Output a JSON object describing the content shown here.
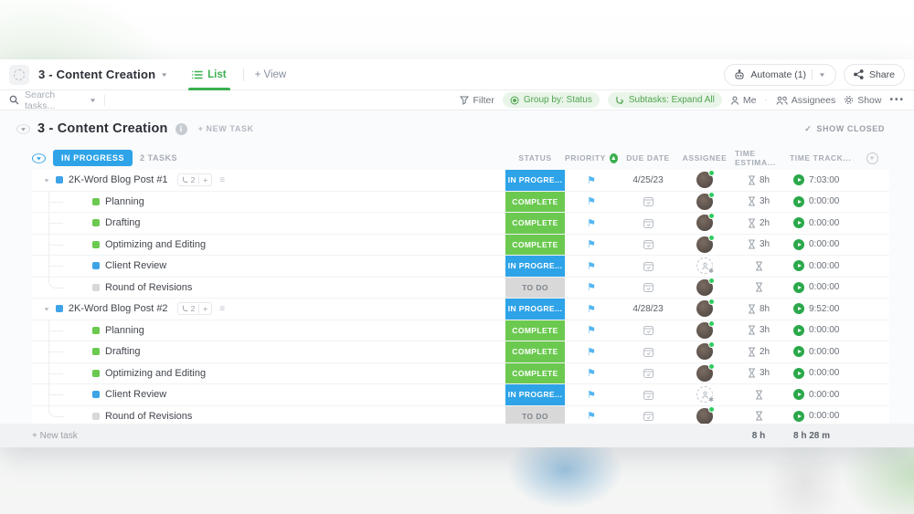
{
  "topbar": {
    "list_title": "3 - Content Creation",
    "tab_list": "List",
    "tab_view": "+ View",
    "automate_label": "Automate (1)",
    "share_label": "Share"
  },
  "toolbar": {
    "search_placeholder": "Search tasks...",
    "filter_label": "Filter",
    "group_by_label": "Group by: Status",
    "subtasks_label": "Subtasks: Expand All",
    "me_label": "Me",
    "assignees_label": "Assignees",
    "show_label": "Show"
  },
  "page": {
    "title": "3 - Content Creation",
    "info_label": "i",
    "new_task_label": "+ NEW TASK",
    "show_closed_label": "SHOW CLOSED",
    "show_closed_check": "✓"
  },
  "columns": {
    "status": "STATUS",
    "priority": "PRIORITY",
    "due": "DUE DATE",
    "assignee": "ASSIGNEE",
    "estimate": "TIME ESTIMA...",
    "tracked": "TIME TRACK..."
  },
  "group": {
    "status_label": "IN PROGRESS",
    "count_label": "2 TASKS"
  },
  "colors": {
    "in_progress": "#2ea3e8",
    "complete": "#6bc950",
    "todo": "#d8d8d8",
    "accent_green": "#3baf4f"
  },
  "tasks": [
    {
      "name": "2K-Word Blog Post #1",
      "subtask_count": "2",
      "status": "IN PROGRE...",
      "status_type": "inprogress",
      "due": "4/25/23",
      "estimate": "8h",
      "tracked": "7:03:00",
      "assignee": "avatar",
      "square": "#3fa3e8",
      "subtasks": [
        {
          "name": "Planning",
          "status": "COMPLETE",
          "status_type": "complete",
          "estimate": "3h",
          "tracked": "0:00:00",
          "assignee": "avatar",
          "square": "#6bc950"
        },
        {
          "name": "Drafting",
          "status": "COMPLETE",
          "status_type": "complete",
          "estimate": "2h",
          "tracked": "0:00:00",
          "assignee": "avatar",
          "square": "#6bc950"
        },
        {
          "name": "Optimizing and Editing",
          "status": "COMPLETE",
          "status_type": "complete",
          "estimate": "3h",
          "tracked": "0:00:00",
          "assignee": "avatar",
          "square": "#6bc950"
        },
        {
          "name": "Client Review",
          "status": "IN PROGRE...",
          "status_type": "inprogress",
          "estimate": "",
          "tracked": "0:00:00",
          "assignee": "placeholder",
          "square": "#3fa3e8"
        },
        {
          "name": "Round of Revisions",
          "status": "TO DO",
          "status_type": "todo",
          "estimate": "",
          "tracked": "0:00:00",
          "assignee": "avatar",
          "square": "#d8d8d8"
        }
      ]
    },
    {
      "name": "2K-Word Blog Post #2",
      "subtask_count": "2",
      "status": "IN PROGRE...",
      "status_type": "inprogress",
      "due": "4/28/23",
      "estimate": "8h",
      "tracked": "9:52:00",
      "assignee": "avatar",
      "square": "#3fa3e8",
      "subtasks": [
        {
          "name": "Planning",
          "status": "COMPLETE",
          "status_type": "complete",
          "estimate": "3h",
          "tracked": "0:00:00",
          "assignee": "avatar",
          "square": "#6bc950"
        },
        {
          "name": "Drafting",
          "status": "COMPLETE",
          "status_type": "complete",
          "estimate": "2h",
          "tracked": "0:00:00",
          "assignee": "avatar",
          "square": "#6bc950"
        },
        {
          "name": "Optimizing and Editing",
          "status": "COMPLETE",
          "status_type": "complete",
          "estimate": "3h",
          "tracked": "0:00:00",
          "assignee": "avatar",
          "square": "#6bc950"
        },
        {
          "name": "Client Review",
          "status": "IN PROGRE...",
          "status_type": "inprogress",
          "estimate": "",
          "tracked": "0:00:00",
          "assignee": "placeholder",
          "square": "#3fa3e8"
        },
        {
          "name": "Round of Revisions",
          "status": "TO DO",
          "status_type": "todo",
          "estimate": "",
          "tracked": "0:00:00",
          "assignee": "avatar",
          "square": "#d8d8d8"
        }
      ]
    }
  ],
  "footer": {
    "new_task_label": "+ New task",
    "estimate_total": "8 h",
    "tracked_total": "8 h 28 m"
  }
}
